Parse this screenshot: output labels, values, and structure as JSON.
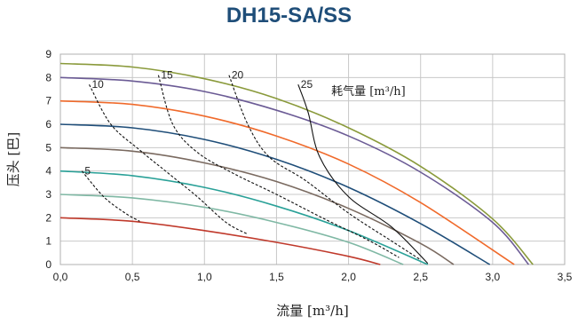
{
  "chart_data": {
    "type": "line",
    "title": "DH15-SA/SS",
    "xlabel": "流量 [m³/h]",
    "ylabel": "压头 [巴]",
    "xlim": [
      0,
      3.5
    ],
    "ylim": [
      0,
      9
    ],
    "xticks": [
      "0,0",
      "0,5",
      "1,0",
      "1,5",
      "2,0",
      "2,5",
      "3,0",
      "3,5"
    ],
    "yticks": [
      "0",
      "1",
      "2",
      "3",
      "4",
      "5",
      "6",
      "7",
      "8",
      "9"
    ],
    "grid": true,
    "series": [
      {
        "color": "#c0392b",
        "x": [
          0,
          0.5,
          1.0,
          1.5,
          2.0,
          2.22
        ],
        "y": [
          2,
          1.85,
          1.45,
          0.95,
          0.35,
          0
        ]
      },
      {
        "color": "#7fb8a4",
        "x": [
          0,
          0.5,
          1.0,
          1.5,
          2.0,
          2.38
        ],
        "y": [
          3,
          2.85,
          2.45,
          1.8,
          0.95,
          0
        ]
      },
      {
        "color": "#2aa198",
        "x": [
          0,
          0.5,
          1.0,
          1.5,
          2.0,
          2.55
        ],
        "y": [
          4,
          3.8,
          3.3,
          2.5,
          1.45,
          0
        ]
      },
      {
        "color": "#7a6a60",
        "x": [
          0,
          0.5,
          1.0,
          1.5,
          2.0,
          2.5,
          2.73
        ],
        "y": [
          5,
          4.85,
          4.35,
          3.55,
          2.4,
          0.9,
          0
        ]
      },
      {
        "color": "#1f4e79",
        "x": [
          0,
          0.5,
          1.0,
          1.5,
          2.0,
          2.5,
          2.98
        ],
        "y": [
          6,
          5.85,
          5.35,
          4.5,
          3.3,
          1.75,
          0
        ]
      },
      {
        "color": "#f06a2b",
        "x": [
          0,
          0.5,
          1.0,
          1.5,
          2.0,
          2.5,
          3.15
        ],
        "y": [
          7,
          6.85,
          6.35,
          5.5,
          4.3,
          2.65,
          0
        ]
      },
      {
        "color": "#6b5b95",
        "x": [
          0,
          0.5,
          1.0,
          1.5,
          2.0,
          2.5,
          3.0,
          3.25
        ],
        "y": [
          8,
          7.85,
          7.4,
          6.6,
          5.5,
          3.95,
          1.8,
          0
        ]
      },
      {
        "color": "#8a9a3b",
        "x": [
          0,
          0.5,
          1.0,
          1.5,
          2.0,
          2.5,
          3.0,
          3.28
        ],
        "y": [
          8.6,
          8.45,
          7.95,
          7.1,
          5.85,
          4.2,
          1.95,
          0
        ]
      }
    ],
    "air_consumption": {
      "label": "耗气量 [m³/h]",
      "lines": [
        {
          "name": "5",
          "style": "dashed",
          "x": [
            0.15,
            0.3,
            0.45,
            0.55
          ],
          "y": [
            4.0,
            2.9,
            2.2,
            1.85
          ]
        },
        {
          "name": "10",
          "style": "dashed",
          "x": [
            0.2,
            0.35,
            0.55,
            0.75,
            0.95,
            1.15,
            1.3
          ],
          "y": [
            7.7,
            6.0,
            4.9,
            3.9,
            2.9,
            1.8,
            1.3
          ]
        },
        {
          "name": "15",
          "style": "dashed",
          "x": [
            0.68,
            0.78,
            0.95,
            1.2,
            1.5,
            1.85,
            2.15,
            2.35
          ],
          "y": [
            8.1,
            6.0,
            4.8,
            3.9,
            3.0,
            1.9,
            1.0,
            0.3
          ]
        },
        {
          "name": "20",
          "style": "dashed",
          "x": [
            1.17,
            1.3,
            1.45,
            1.7,
            2.0,
            2.3,
            2.5
          ],
          "y": [
            8.1,
            6.0,
            4.6,
            3.6,
            2.2,
            1.0,
            0.2
          ]
        },
        {
          "name": "25",
          "style": "solid",
          "x": [
            1.65,
            1.72,
            1.8,
            2.0,
            2.3,
            2.55
          ],
          "y": [
            7.7,
            6.5,
            4.6,
            2.9,
            1.6,
            0.05
          ]
        }
      ]
    }
  }
}
